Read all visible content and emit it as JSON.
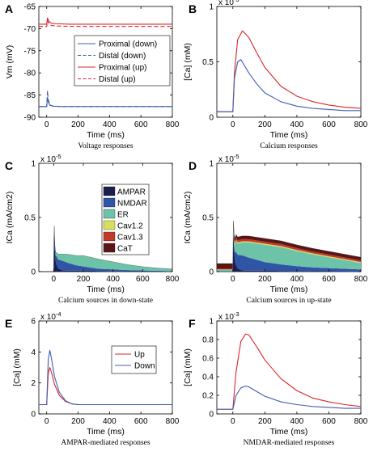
{
  "colors": {
    "red": "#d9262b",
    "blue": "#3f5db3",
    "AMPAR": "#1b1f4e",
    "NMDAR": "#2f55a7",
    "ER": "#6cc3a8",
    "Cav1.2": "#d7e05a",
    "Cav1.3": "#c23a2a",
    "CaT": "#5a1616"
  },
  "chart_data": [
    {
      "id": "A",
      "panel_label": "A",
      "type": "line",
      "ylabel": "Vm (mV)",
      "xlabel": "Time (ms)",
      "caption": "Voltage responses",
      "xlim": [
        -50,
        800
      ],
      "ylim": [
        -90,
        -65
      ],
      "xticks": [
        0,
        200,
        400,
        600,
        800
      ],
      "yticks": [
        -90,
        -85,
        -80,
        -75,
        -70,
        -65
      ],
      "legend": "right-middle",
      "series": [
        {
          "name": "Proximal (down)",
          "color": "blue",
          "dash": false,
          "x": [
            -50,
            0,
            5,
            10,
            20,
            40,
            100,
            800
          ],
          "y": [
            -87.6,
            -87.6,
            -85.5,
            -86.5,
            -87.3,
            -87.5,
            -87.6,
            -87.6
          ]
        },
        {
          "name": "Distal (down)",
          "color": "blue",
          "dash": true,
          "x": [
            -50,
            0,
            5,
            10,
            20,
            40,
            100,
            800
          ],
          "y": [
            -87.6,
            -87.6,
            -84.0,
            -86.0,
            -87.2,
            -87.5,
            -87.6,
            -87.6
          ]
        },
        {
          "name": "Proximal (up)",
          "color": "red",
          "dash": false,
          "x": [
            -50,
            0,
            5,
            15,
            30,
            60,
            150,
            800
          ],
          "y": [
            -69.0,
            -69.0,
            -67.6,
            -68.4,
            -68.8,
            -68.9,
            -69.0,
            -69.0
          ]
        },
        {
          "name": "Distal (up)",
          "color": "red",
          "dash": true,
          "x": [
            -50,
            0,
            5,
            15,
            30,
            60,
            150,
            800
          ],
          "y": [
            -69.5,
            -69.5,
            -68.2,
            -69.0,
            -69.3,
            -69.4,
            -69.5,
            -69.5
          ]
        }
      ]
    },
    {
      "id": "B",
      "panel_label": "B",
      "type": "line",
      "ylabel": "[Ca] (mM)",
      "xlabel": "Time (ms)",
      "caption": "Calcium responses",
      "multiplier": "x 10",
      "multiplier_exp": "-3",
      "xlim": [
        -100,
        800
      ],
      "ylim": [
        0,
        1
      ],
      "xticks": [
        0,
        200,
        400,
        600,
        800
      ],
      "yticks": [
        0,
        0.5,
        1
      ],
      "ytick_labels": [
        "0",
        "0.5",
        "1"
      ],
      "series": [
        {
          "name": "",
          "color": "red",
          "x": [
            -100,
            0,
            10,
            30,
            60,
            100,
            150,
            200,
            300,
            400,
            500,
            600,
            700,
            800
          ],
          "y": [
            0.05,
            0.05,
            0.4,
            0.7,
            0.78,
            0.72,
            0.58,
            0.45,
            0.28,
            0.19,
            0.14,
            0.11,
            0.09,
            0.08
          ]
        },
        {
          "name": "",
          "color": "blue",
          "x": [
            -100,
            0,
            10,
            30,
            50,
            100,
            150,
            200,
            300,
            400,
            500,
            600,
            700,
            800
          ],
          "y": [
            0.05,
            0.05,
            0.35,
            0.5,
            0.52,
            0.4,
            0.3,
            0.22,
            0.14,
            0.1,
            0.08,
            0.07,
            0.06,
            0.06
          ]
        }
      ]
    },
    {
      "id": "C",
      "panel_label": "C",
      "type": "area",
      "ylabel": "ICa (mA/cm2)",
      "xlabel": "Time (ms)",
      "caption": "Calcium sources in down-state",
      "multiplier": "x 10",
      "multiplier_exp": "-5",
      "xlim": [
        -100,
        800
      ],
      "ylim": [
        0,
        1
      ],
      "xticks": [
        0,
        200,
        400,
        600,
        800
      ],
      "yticks": [
        0,
        0.5,
        1
      ],
      "ytick_labels": [
        "0",
        "0.5",
        "1"
      ],
      "legend": "top-right",
      "legend_entries": [
        "AMPAR",
        "NMDAR",
        "ER",
        "Cav1.2",
        "Cav1.3",
        "CaT"
      ],
      "series": [
        {
          "name": "AMPAR",
          "x": [
            -100,
            0,
            3,
            8,
            15,
            30,
            60,
            800
          ],
          "y": [
            0,
            0,
            0.45,
            0.2,
            0.08,
            0.03,
            0.01,
            0
          ]
        },
        {
          "name": "NMDAR",
          "x": [
            -100,
            0,
            20,
            60,
            100,
            150,
            200,
            300,
            400,
            500,
            600,
            800
          ],
          "y": [
            0,
            0,
            0.08,
            0.09,
            0.07,
            0.05,
            0.04,
            0.02,
            0.015,
            0.01,
            0.008,
            0.005
          ]
        },
        {
          "name": "ER",
          "x": [
            -100,
            0,
            30,
            100,
            200,
            300,
            400,
            500,
            600,
            700,
            800
          ],
          "y": [
            0,
            0,
            0.05,
            0.08,
            0.1,
            0.09,
            0.07,
            0.05,
            0.035,
            0.025,
            0.02
          ]
        },
        {
          "name": "Cav1.2",
          "x": [
            -100,
            800
          ],
          "y": [
            0,
            0
          ]
        },
        {
          "name": "Cav1.3",
          "x": [
            -100,
            800
          ],
          "y": [
            0,
            0
          ]
        },
        {
          "name": "CaT",
          "x": [
            -100,
            800
          ],
          "y": [
            0,
            0
          ]
        }
      ]
    },
    {
      "id": "D",
      "panel_label": "D",
      "type": "area",
      "ylabel": "ICa (mA/cm2)",
      "xlabel": "Time (ms)",
      "caption": "Calcium sources in up-state",
      "multiplier": "x 10",
      "multiplier_exp": "-5",
      "xlim": [
        -100,
        800
      ],
      "ylim": [
        0,
        1
      ],
      "xticks": [
        0,
        200,
        400,
        600,
        800
      ],
      "yticks": [
        0,
        0.5,
        1
      ],
      "ytick_labels": [
        "0",
        "0.5",
        "1"
      ],
      "series": [
        {
          "name": "AMPAR",
          "x": [
            -100,
            0,
            3,
            8,
            15,
            30,
            60,
            800
          ],
          "y": [
            0,
            0,
            0.4,
            0.18,
            0.08,
            0.03,
            0.01,
            0
          ]
        },
        {
          "name": "NMDAR",
          "x": [
            -100,
            0,
            20,
            60,
            100,
            150,
            200,
            300,
            400,
            500,
            600,
            700,
            800
          ],
          "y": [
            0.005,
            0.005,
            0.12,
            0.14,
            0.12,
            0.1,
            0.08,
            0.06,
            0.045,
            0.035,
            0.03,
            0.025,
            0.02
          ]
        },
        {
          "name": "ER",
          "x": [
            -100,
            0,
            20,
            100,
            200,
            300,
            400,
            500,
            600,
            700,
            800
          ],
          "y": [
            0.01,
            0.01,
            0.1,
            0.14,
            0.16,
            0.16,
            0.14,
            0.12,
            0.1,
            0.08,
            0.06
          ]
        },
        {
          "name": "Cav1.2",
          "x": [
            -100,
            0,
            20,
            800
          ],
          "y": [
            0.005,
            0.005,
            0.01,
            0.008
          ]
        },
        {
          "name": "Cav1.3",
          "x": [
            -100,
            0,
            20,
            800
          ],
          "y": [
            0.005,
            0.005,
            0.02,
            0.015
          ]
        },
        {
          "name": "CaT",
          "x": [
            -100,
            0,
            20,
            800
          ],
          "y": [
            0.05,
            0.05,
            0.03,
            0.03
          ]
        }
      ]
    },
    {
      "id": "E",
      "panel_label": "E",
      "type": "line",
      "ylabel": "[Ca] (mM)",
      "xlabel": "Time (ms)",
      "caption": "AMPAR-mediated responses",
      "multiplier": "x 10",
      "multiplier_exp": "-4",
      "xlim": [
        -50,
        800
      ],
      "ylim": [
        0,
        6
      ],
      "xticks": [
        0,
        200,
        400,
        600,
        800
      ],
      "yticks": [
        0,
        2,
        4,
        6
      ],
      "ytick_labels": [
        "0",
        "2",
        "4",
        "6"
      ],
      "legend": "top-right",
      "series": [
        {
          "name": "Up",
          "color": "red",
          "x": [
            -50,
            0,
            10,
            20,
            30,
            50,
            80,
            120,
            160,
            200,
            800
          ],
          "y": [
            0.6,
            0.6,
            2.6,
            3.0,
            2.7,
            1.9,
            1.2,
            0.8,
            0.65,
            0.6,
            0.6
          ]
        },
        {
          "name": "Down",
          "color": "blue",
          "x": [
            -50,
            0,
            10,
            20,
            30,
            50,
            80,
            120,
            160,
            200,
            800
          ],
          "y": [
            0.6,
            0.6,
            3.5,
            4.1,
            3.6,
            2.4,
            1.4,
            0.85,
            0.65,
            0.6,
            0.6
          ]
        }
      ]
    },
    {
      "id": "F",
      "panel_label": "F",
      "type": "line",
      "ylabel": "[Ca] (mM)",
      "xlabel": "Time (ms)",
      "caption": "NMDAR-mediated responses",
      "multiplier": "x 10",
      "multiplier_exp": "-3",
      "xlim": [
        -100,
        800
      ],
      "ylim": [
        0,
        1
      ],
      "xticks": [
        0,
        200,
        400,
        600,
        800
      ],
      "yticks": [
        0,
        0.2,
        0.4,
        0.6,
        0.8,
        1
      ],
      "ytick_labels": [
        "0",
        "0.2",
        "0.4",
        "0.6",
        "0.8",
        "1"
      ],
      "series": [
        {
          "name": "",
          "color": "red",
          "x": [
            -100,
            0,
            20,
            50,
            80,
            100,
            150,
            200,
            300,
            400,
            500,
            600,
            700,
            800
          ],
          "y": [
            0.05,
            0.05,
            0.45,
            0.78,
            0.86,
            0.85,
            0.72,
            0.58,
            0.38,
            0.25,
            0.17,
            0.13,
            0.1,
            0.08
          ]
        },
        {
          "name": "",
          "color": "blue",
          "x": [
            -100,
            0,
            20,
            50,
            80,
            100,
            150,
            200,
            300,
            400,
            500,
            600,
            700,
            800
          ],
          "y": [
            0.05,
            0.05,
            0.2,
            0.28,
            0.3,
            0.29,
            0.24,
            0.19,
            0.13,
            0.1,
            0.08,
            0.07,
            0.06,
            0.06
          ]
        }
      ]
    }
  ]
}
